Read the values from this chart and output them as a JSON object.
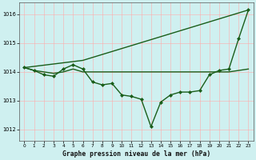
{
  "background_color": "#cff0f0",
  "grid_color": "#ffaaaa",
  "line_color": "#1a5e1a",
  "marker_color": "#1a5e1a",
  "xlabel": "Graphe pression niveau de la mer (hPa)",
  "xlim": [
    -0.5,
    23.5
  ],
  "ylim": [
    1011.6,
    1016.4
  ],
  "yticks": [
    1012,
    1013,
    1014,
    1015,
    1016
  ],
  "xticks": [
    0,
    1,
    2,
    3,
    4,
    5,
    6,
    7,
    8,
    9,
    10,
    11,
    12,
    13,
    14,
    15,
    16,
    17,
    18,
    19,
    20,
    21,
    22,
    23
  ],
  "series": [
    {
      "x": [
        0,
        1,
        2,
        3,
        4,
        5,
        6,
        7,
        8,
        9,
        10,
        11,
        12,
        13,
        14,
        15,
        16,
        17,
        18,
        19,
        20,
        21,
        22,
        23
      ],
      "y": [
        1014.15,
        1014.05,
        1014.0,
        1013.95,
        1014.0,
        1014.1,
        1014.0,
        1014.0,
        1014.0,
        1014.0,
        1014.0,
        1014.0,
        1014.0,
        1014.0,
        1014.0,
        1014.0,
        1014.0,
        1014.0,
        1014.0,
        1014.0,
        1014.0,
        1014.0,
        1014.05,
        1014.1
      ],
      "has_markers": false,
      "linewidth": 1.0
    },
    {
      "x": [
        0,
        6,
        23
      ],
      "y": [
        1014.15,
        1014.4,
        1016.15
      ],
      "has_markers": false,
      "linewidth": 1.0
    },
    {
      "x": [
        0,
        1,
        2,
        3,
        4,
        5,
        6,
        7,
        8,
        9,
        10,
        11,
        12,
        13,
        14,
        15,
        16,
        17,
        18,
        19,
        20,
        21,
        22,
        23
      ],
      "y": [
        1014.15,
        1014.05,
        1013.9,
        1013.85,
        1014.1,
        1014.25,
        1014.1,
        1013.65,
        1013.55,
        1013.6,
        1013.2,
        1013.15,
        1013.05,
        1012.1,
        1012.95,
        1013.2,
        1013.3,
        1013.3,
        1013.35,
        1013.9,
        1014.05,
        1014.1,
        1015.15,
        1016.15
      ],
      "has_markers": true,
      "linewidth": 1.0
    }
  ]
}
